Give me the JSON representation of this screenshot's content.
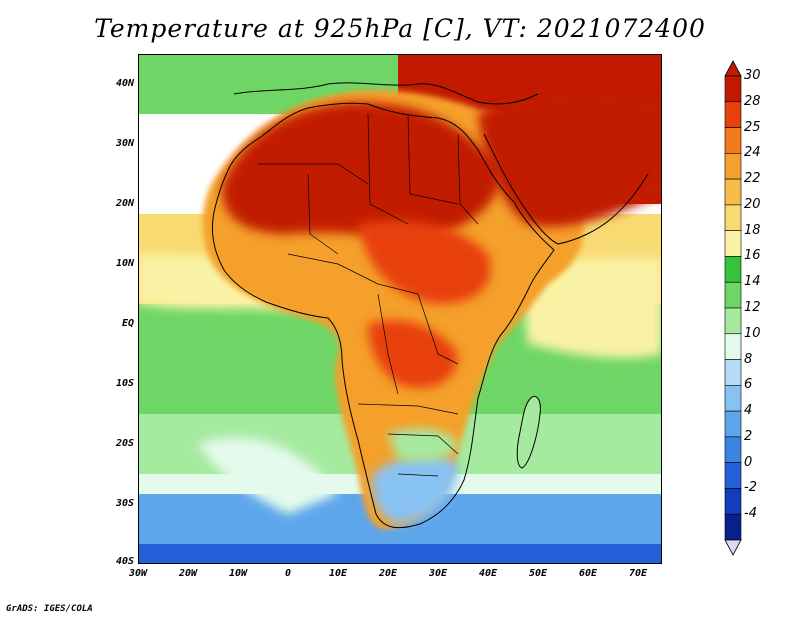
{
  "title": "Temperature at 925hPa [C], VT: 2021072400",
  "footer": "GrADS: IGES/COLA",
  "axes": {
    "lat_labels": [
      "40N",
      "30N",
      "20N",
      "10N",
      "EQ",
      "10S",
      "20S",
      "30S",
      "40S"
    ],
    "lon_labels": [
      "30W",
      "20W",
      "10W",
      "0",
      "10E",
      "20E",
      "30E",
      "40E",
      "50E",
      "60E",
      "70E"
    ],
    "lat_range": [
      -40,
      45
    ],
    "lon_range": [
      -30,
      75
    ]
  },
  "colorbar": {
    "labels": [
      "30",
      "28",
      "25",
      "24",
      "22",
      "20",
      "18",
      "16",
      "14",
      "12",
      "10",
      "8",
      "6",
      "4",
      "2",
      "0",
      "-2",
      "-4"
    ],
    "colors": [
      "#c21a00",
      "#e8400c",
      "#f2791c",
      "#f4a02c",
      "#f6bd4a",
      "#f8da72",
      "#f9f2a4",
      "#36c43a",
      "#6ed666",
      "#a6eaa0",
      "#e4faec",
      "#b6dcf8",
      "#88c2f2",
      "#5ea6ec",
      "#3c84e2",
      "#2461d8",
      "#123ebe",
      "#0a1e8c"
    ]
  },
  "map_colors": {
    "ocean_south_cold": "#5ea6ec",
    "ocean_south_mid": "#a6eaa0",
    "ocean_tropical": "#6ed666",
    "ocean_warm": "#f9f2a4",
    "land_hot": "#c21a00",
    "land_warm": "#e8400c",
    "land_mild": "#f4a02c",
    "coast": "#000000"
  }
}
